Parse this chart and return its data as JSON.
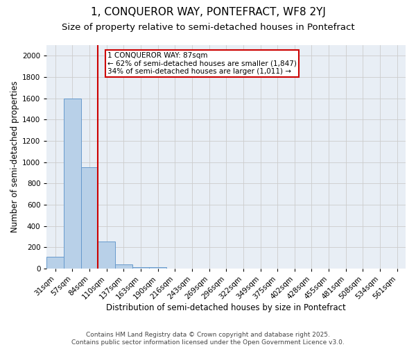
{
  "title_line1": "1, CONQUEROR WAY, PONTEFRACT, WF8 2YJ",
  "title_line2": "Size of property relative to semi-detached houses in Pontefract",
  "xlabel": "Distribution of semi-detached houses by size in Pontefract",
  "ylabel": "Number of semi-detached properties",
  "bar_labels": [
    "31sqm",
    "57sqm",
    "84sqm",
    "110sqm",
    "137sqm",
    "163sqm",
    "190sqm",
    "216sqm",
    "243sqm",
    "269sqm",
    "296sqm",
    "322sqm",
    "349sqm",
    "375sqm",
    "402sqm",
    "428sqm",
    "455sqm",
    "481sqm",
    "508sqm",
    "534sqm",
    "561sqm"
  ],
  "bar_values": [
    110,
    1600,
    950,
    255,
    38,
    15,
    10,
    0,
    0,
    0,
    0,
    0,
    0,
    0,
    0,
    0,
    0,
    0,
    0,
    0,
    0
  ],
  "bar_color": "#b8d0e8",
  "bar_edgecolor": "#6699cc",
  "red_line_bin_index": 2,
  "annotation_text": "1 CONQUEROR WAY: 87sqm\n← 62% of semi-detached houses are smaller (1,847)\n34% of semi-detached houses are larger (1,011) →",
  "annotation_box_color": "white",
  "annotation_box_edgecolor": "#cc0000",
  "red_line_color": "#cc0000",
  "ylim": [
    0,
    2100
  ],
  "yticks": [
    0,
    200,
    400,
    600,
    800,
    1000,
    1200,
    1400,
    1600,
    1800,
    2000
  ],
  "grid_color": "#cccccc",
  "bg_color": "#e8eef5",
  "footer_text": "Contains HM Land Registry data © Crown copyright and database right 2025.\nContains public sector information licensed under the Open Government Licence v3.0.",
  "title_fontsize": 11,
  "subtitle_fontsize": 9.5,
  "axis_label_fontsize": 8.5,
  "tick_fontsize": 7.5,
  "annotation_fontsize": 7.5,
  "footer_fontsize": 6.5
}
